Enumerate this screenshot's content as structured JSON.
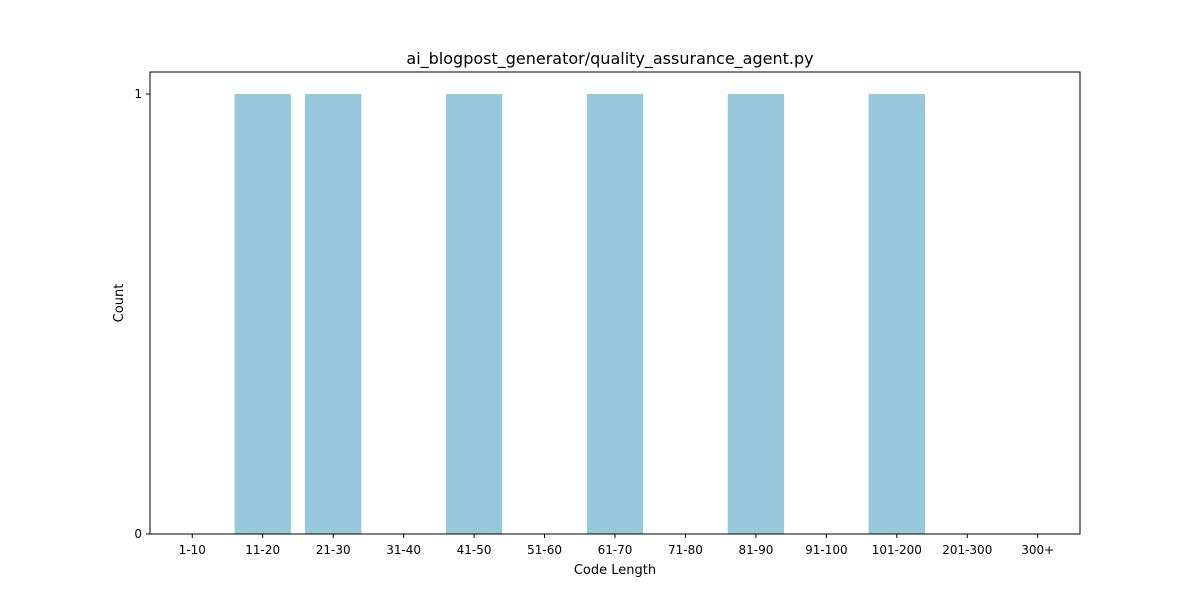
{
  "chart_data": {
    "type": "bar",
    "title": "ai_blogpost_generator/quality_assurance_agent.py",
    "xlabel": "Code Length",
    "ylabel": "Count",
    "categories": [
      "1-10",
      "11-20",
      "21-30",
      "31-40",
      "41-50",
      "51-60",
      "61-70",
      "71-80",
      "81-90",
      "91-100",
      "101-200",
      "201-300",
      "300+"
    ],
    "values": [
      0,
      1,
      1,
      0,
      1,
      0,
      1,
      0,
      1,
      0,
      1,
      0,
      0
    ],
    "ylim": [
      0,
      1.05
    ],
    "yticks": [
      0,
      1
    ],
    "bar_color": "#96c9dc",
    "grid": false,
    "legend": "none"
  }
}
